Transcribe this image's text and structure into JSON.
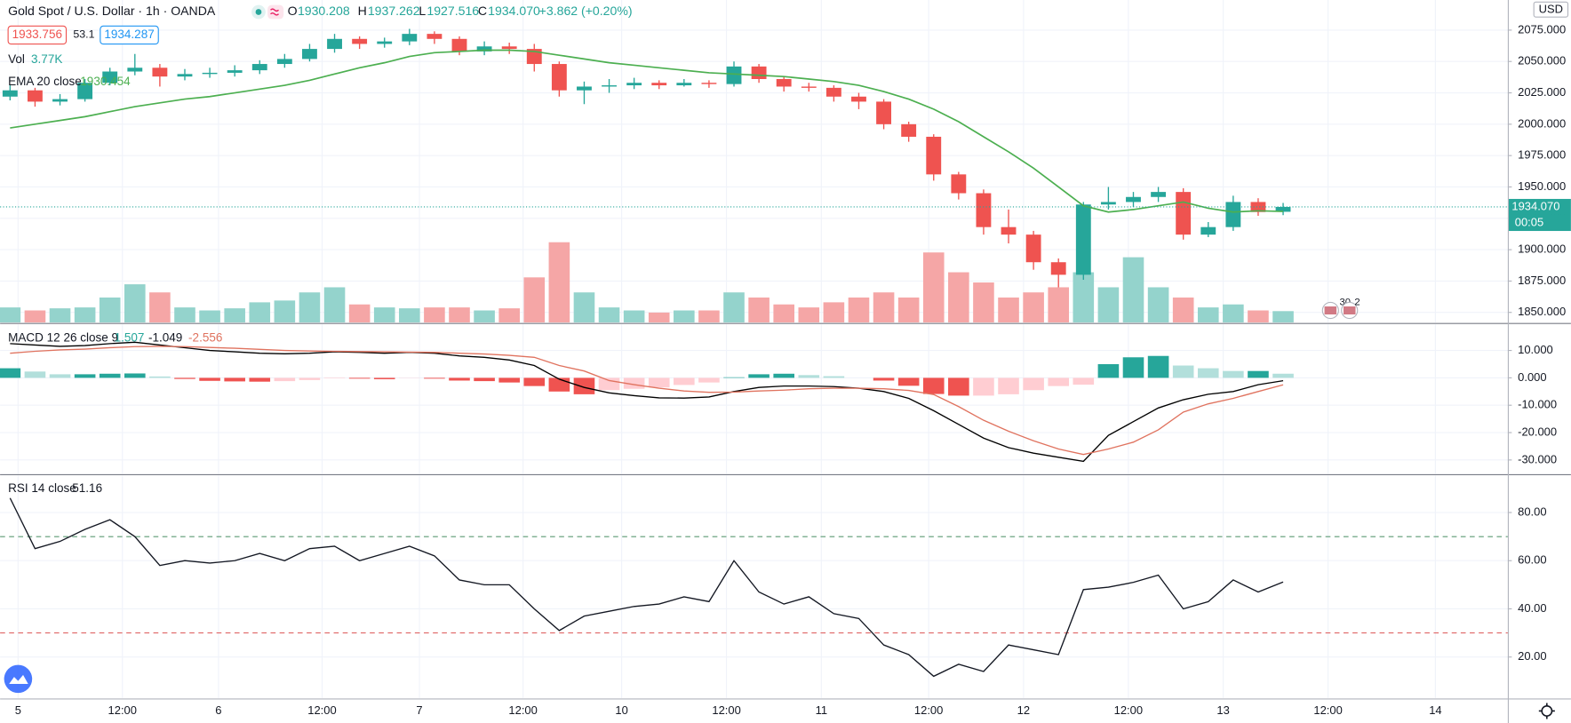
{
  "chart_data": [
    {
      "type": "candlestick",
      "title": "Gold Spot / U.S. Dollar · 1h · OANDA",
      "ohlc_labels": [
        "O",
        "H",
        "L",
        "C"
      ],
      "ohlc_values": [
        "1930.208",
        "1937.262",
        "1927.516",
        "1934.070"
      ],
      "change": "+3.862 (+0.20%)",
      "bid": "1933.756",
      "spread": "53.1",
      "ask": "1934.287",
      "last_price": "1934.070",
      "countdown": "00:05",
      "currency": "USD",
      "event_labels": [
        "30",
        "2"
      ],
      "up_color": "#26a69a",
      "down_color": "#ef5350",
      "open": [
        2022,
        2027,
        2018,
        2020,
        2033,
        2042,
        2045,
        2038,
        2040,
        2041,
        2043,
        2048,
        2052,
        2060,
        2068,
        2064,
        2066,
        2072,
        2068,
        2058,
        2062,
        2060,
        2048,
        2027,
        2030,
        2031,
        2033,
        2031,
        2033,
        2032,
        2046,
        2036,
        2030,
        2029,
        2022,
        2018,
        2000,
        1990,
        1960,
        1945,
        1918,
        1912,
        1890,
        1880,
        1936,
        1938,
        1942,
        1946,
        1912,
        1918,
        1938,
        1930.208
      ],
      "high": [
        2031,
        2029,
        2024,
        2036,
        2045,
        2056,
        2048,
        2044,
        2045,
        2047,
        2051,
        2056,
        2064,
        2072,
        2070,
        2069,
        2076,
        2074,
        2070,
        2066,
        2065,
        2064,
        2050,
        2034,
        2036,
        2037,
        2035,
        2036,
        2035,
        2050,
        2048,
        2038,
        2033,
        2031,
        2025,
        2020,
        2002,
        1992,
        1962,
        1948,
        1932,
        1915,
        1893,
        1938,
        1950,
        1946,
        1950,
        1949,
        1922,
        1943,
        1941,
        1937.262
      ],
      "low": [
        2019,
        2014,
        2015,
        2018,
        2031,
        2039,
        2030,
        2035,
        2037,
        2038,
        2040,
        2045,
        2050,
        2057,
        2060,
        2061,
        2063,
        2064,
        2055,
        2055,
        2056,
        2042,
        2022,
        2016,
        2025,
        2028,
        2028,
        2030,
        2029,
        2030,
        2033,
        2026,
        2026,
        2018,
        2012,
        1996,
        1986,
        1955,
        1940,
        1912,
        1905,
        1884,
        1870,
        1876,
        1932,
        1934,
        1938,
        1908,
        1910,
        1915,
        1927,
        1927.516
      ],
      "close": [
        2027,
        2018,
        2020,
        2033,
        2042,
        2045,
        2038,
        2040,
        2041,
        2043,
        2048,
        2052,
        2060,
        2068,
        2064,
        2066,
        2072,
        2068,
        2058,
        2062,
        2060,
        2048,
        2027,
        2030,
        2031,
        2033,
        2031,
        2033,
        2032,
        2046,
        2036,
        2030,
        2029,
        2022,
        2018,
        2000,
        1990,
        1960,
        1945,
        1918,
        1912,
        1890,
        1880,
        1936,
        1938,
        1942,
        1946,
        1912,
        1918,
        1938,
        1930,
        1934.07
      ],
      "ema": {
        "name": "EMA 20 close",
        "color": "#4caf50",
        "values": [
          1997,
          2000,
          2003,
          2006,
          2010,
          2014,
          2017,
          2020,
          2022,
          2025,
          2028,
          2031,
          2035,
          2040,
          2045,
          2049,
          2054,
          2057,
          2058,
          2059,
          2059,
          2058,
          2055,
          2052,
          2049,
          2047,
          2045,
          2043,
          2041,
          2040,
          2039,
          2038,
          2036,
          2034,
          2031,
          2026,
          2020,
          2012,
          2002,
          1990,
          1978,
          1965,
          1950,
          1935,
          1930,
          1932,
          1935,
          1938,
          1933,
          1930,
          1931,
          1930.454
        ]
      },
      "volume": {
        "name": "Vol",
        "label": "3.77K",
        "up_color": "#94d3cc",
        "down_color": "#f5a6a6",
        "ylim": [
          0,
          30000
        ],
        "values": [
          5000,
          4000,
          4700,
          5000,
          8300,
          12700,
          10000,
          5000,
          4000,
          4700,
          6700,
          7300,
          10000,
          11700,
          6000,
          5000,
          4700,
          5000,
          5000,
          4000,
          4700,
          15000,
          26700,
          10000,
          5000,
          4000,
          3300,
          4000,
          4000,
          10000,
          8300,
          6000,
          5000,
          6700,
          8300,
          10000,
          8300,
          23300,
          16700,
          13300,
          8300,
          10000,
          11700,
          16700,
          11700,
          21700,
          11700,
          8300,
          5000,
          6000,
          4000,
          3770
        ]
      },
      "ylim": [
        1842,
        2099
      ],
      "yticks": [
        {
          "value": 1850,
          "label": "1850.000"
        },
        {
          "value": 1875,
          "label": "1875.000"
        },
        {
          "value": 1900,
          "label": "1900.000"
        },
        {
          "value": 1925,
          "label": "1925.000"
        },
        {
          "value": 1950,
          "label": "1950.000"
        },
        {
          "value": 1975,
          "label": "1975.000"
        },
        {
          "value": 2000,
          "label": "2000.000"
        },
        {
          "value": 2025,
          "label": "2025.000"
        },
        {
          "value": 2050,
          "label": "2050.000"
        },
        {
          "value": 2075,
          "label": "2075.000"
        }
      ],
      "xlim": [
        -0.4,
        60
      ],
      "xticks": [
        {
          "value": 0.32,
          "label": "5"
        },
        {
          "value": 4.5,
          "label": "12:00"
        },
        {
          "value": 8.35,
          "label": "6"
        },
        {
          "value": 12.5,
          "label": "12:00"
        },
        {
          "value": 16.4,
          "label": "7"
        },
        {
          "value": 20.55,
          "label": "12:00"
        },
        {
          "value": 24.5,
          "label": "10"
        },
        {
          "value": 28.7,
          "label": "12:00"
        },
        {
          "value": 32.5,
          "label": "11"
        },
        {
          "value": 36.8,
          "label": "12:00"
        },
        {
          "value": 40.6,
          "label": "12"
        },
        {
          "value": 44.8,
          "label": "12:00"
        },
        {
          "value": 48.6,
          "label": "13"
        },
        {
          "value": 52.8,
          "label": "12:00"
        },
        {
          "value": 57.1,
          "label": "14"
        }
      ],
      "grid": true
    },
    {
      "type": "macd",
      "title": "MACD 12 26 close 9",
      "ylim": [
        -35,
        19.5
      ],
      "yticks": [
        {
          "value": 10,
          "label": "10.000"
        },
        {
          "value": 0,
          "label": "0.000"
        },
        {
          "value": -10,
          "label": "-10.000"
        },
        {
          "value": -20,
          "label": "-20.000"
        },
        {
          "value": -30,
          "label": "-30.000"
        }
      ],
      "histogram": {
        "colors": [
          "#26a69a",
          "#b2dfdb",
          "#ffcdd2",
          "#ef5350"
        ],
        "values": [
          3.5,
          2.3,
          1.3,
          1.3,
          1.5,
          1.6,
          0.5,
          -0.4,
          -1.1,
          -1.3,
          -1.4,
          -1.2,
          -0.8,
          -0.2,
          -0.3,
          -0.5,
          -0.1,
          -0.3,
          -1.0,
          -1.2,
          -1.7,
          -3.0,
          -5.0,
          -6.0,
          -4.5,
          -4.0,
          -3.5,
          -2.6,
          -1.7,
          0.2,
          1.3,
          1.5,
          1.0,
          0.6,
          0.0,
          -1.0,
          -2.9,
          -5.9,
          -6.5,
          -6.5,
          -6.0,
          -4.5,
          -3.0,
          -2.5,
          5.0,
          7.5,
          8.0,
          4.5,
          3.5,
          2.5,
          2.5,
          1.507
        ]
      },
      "macd": {
        "color": "#000000",
        "values": [
          12.5,
          12.0,
          11.5,
          11.8,
          12.5,
          13.0,
          12.0,
          11.0,
          10.0,
          9.5,
          9.0,
          8.8,
          9.0,
          9.5,
          9.3,
          9.0,
          9.3,
          9.0,
          8.0,
          7.5,
          6.5,
          4.5,
          -0.5,
          -3.5,
          -5.5,
          -6.5,
          -7.3,
          -7.4,
          -7.0,
          -5.0,
          -3.5,
          -3.0,
          -3.0,
          -3.2,
          -3.8,
          -5.0,
          -7.5,
          -12.0,
          -17.0,
          -22.0,
          -25.5,
          -27.5,
          -29.0,
          -30.5,
          -21.0,
          -16.0,
          -11.0,
          -8.0,
          -6.0,
          -5.0,
          -2.5,
          -1.049
        ]
      },
      "signal": {
        "color": "#e0735f",
        "values": [
          9.0,
          9.7,
          10.2,
          10.5,
          11.0,
          11.4,
          11.5,
          11.4,
          11.1,
          10.8,
          10.4,
          10.0,
          9.8,
          9.7,
          9.6,
          9.5,
          9.4,
          9.3,
          9.0,
          8.7,
          8.2,
          7.5,
          4.5,
          2.5,
          -1.0,
          -2.5,
          -3.8,
          -4.8,
          -5.3,
          -5.2,
          -4.8,
          -4.5,
          -4.0,
          -3.8,
          -3.8,
          -4.0,
          -4.6,
          -6.1,
          -10.5,
          -15.5,
          -19.5,
          -23.0,
          -26.0,
          -28.0,
          -26.0,
          -23.5,
          -19.0,
          -12.5,
          -9.5,
          -7.5,
          -5.0,
          -2.556
        ]
      },
      "grid": true
    },
    {
      "type": "rsi",
      "title": "RSI 14 close",
      "color": "#131722",
      "values": [
        86,
        65,
        68,
        73,
        77,
        70,
        58,
        60,
        59,
        60,
        63,
        60,
        65,
        66,
        60,
        63,
        66,
        62,
        52,
        50,
        50,
        40,
        31,
        37,
        39,
        41,
        42,
        45,
        43,
        60,
        47,
        42,
        45,
        38,
        36,
        25,
        21,
        12,
        17,
        14,
        25,
        23,
        21,
        48,
        49,
        51,
        54,
        40,
        43,
        52,
        47,
        51.16
      ],
      "ylim": [
        3,
        95.3
      ],
      "yticks": [
        {
          "value": 20,
          "label": "20.00"
        },
        {
          "value": 40,
          "label": "40.00"
        },
        {
          "value": 60,
          "label": "60.00"
        },
        {
          "value": 80,
          "label": "80.00"
        }
      ],
      "bands": [
        {
          "value": 70,
          "color": "#5b9a74"
        },
        {
          "value": 30,
          "color": "#e06666"
        }
      ],
      "grid": true
    }
  ]
}
